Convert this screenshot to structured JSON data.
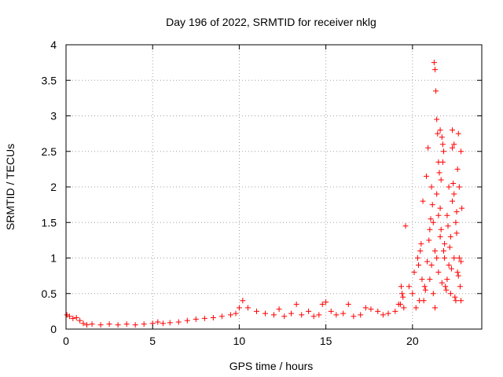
{
  "chart_data": {
    "type": "scatter",
    "title": "Day 196 of 2022, SRMTID for receiver nklg",
    "xlabel": "GPS time / hours",
    "ylabel": "SRMTID / TECUs",
    "xlim": [
      0,
      24
    ],
    "ylim": [
      0,
      4
    ],
    "x_ticks": [
      "0",
      "5",
      "10",
      "15",
      "20"
    ],
    "y_ticks": [
      "0",
      "0.5",
      "1",
      "1.5",
      "2",
      "2.5",
      "3",
      "3.5",
      "4"
    ],
    "grid": true,
    "marker": "plus",
    "color": "#ff0000",
    "series": [
      {
        "name": "SRMTID",
        "x": [
          0.05,
          0.2,
          0.4,
          0.6,
          0.8,
          1.0,
          1.2,
          1.5,
          2.0,
          2.5,
          3.0,
          3.5,
          4.0,
          4.5,
          5.0,
          5.3,
          5.6,
          6.0,
          6.5,
          7.0,
          7.5,
          8.0,
          8.5,
          9.0,
          9.5,
          9.8,
          10.0,
          10.2,
          10.5,
          11.0,
          11.5,
          12.0,
          12.3,
          12.6,
          13.0,
          13.3,
          13.6,
          14.0,
          14.3,
          14.6,
          14.8,
          15.0,
          15.3,
          15.6,
          16.0,
          16.3,
          16.6,
          17.0,
          17.3,
          17.6,
          18.0,
          18.3,
          18.6,
          19.0,
          19.2,
          19.4,
          19.5,
          19.6,
          19.8,
          20.0,
          20.1,
          20.2,
          20.3,
          20.4,
          20.5,
          20.6,
          20.7,
          20.8,
          20.9,
          21.0,
          21.0,
          21.1,
          21.1,
          21.2,
          21.2,
          21.3,
          21.3,
          21.4,
          21.4,
          21.5,
          21.5,
          21.6,
          21.6,
          21.65,
          21.7,
          21.75,
          21.8,
          21.85,
          21.9,
          22.0,
          22.0,
          22.1,
          22.1,
          22.2,
          22.2,
          22.3,
          22.3,
          22.4,
          22.4,
          22.5,
          22.5,
          22.6,
          22.6,
          22.7,
          22.7,
          22.8,
          22.8,
          21.25,
          21.3,
          21.35,
          21.4,
          21.45,
          21.5,
          21.55,
          21.6,
          21.65,
          21.75,
          21.8,
          22.3,
          22.4,
          22.55,
          22.65,
          22.8,
          22.85,
          19.3,
          19.35,
          19.45,
          20.35,
          20.45,
          20.55,
          20.65,
          20.75,
          20.85,
          20.95,
          21.05,
          21.15,
          21.7,
          21.85,
          21.95,
          22.05,
          22.15,
          22.25,
          22.35,
          22.45,
          22.55,
          22.65,
          22.75
        ],
        "y": [
          0.2,
          0.18,
          0.15,
          0.16,
          0.12,
          0.08,
          0.06,
          0.07,
          0.06,
          0.07,
          0.06,
          0.07,
          0.06,
          0.07,
          0.08,
          0.1,
          0.08,
          0.09,
          0.1,
          0.12,
          0.14,
          0.15,
          0.16,
          0.18,
          0.2,
          0.22,
          0.3,
          0.4,
          0.3,
          0.25,
          0.22,
          0.2,
          0.28,
          0.18,
          0.22,
          0.35,
          0.2,
          0.25,
          0.18,
          0.2,
          0.35,
          0.38,
          0.25,
          0.2,
          0.22,
          0.35,
          0.18,
          0.2,
          0.3,
          0.28,
          0.25,
          0.2,
          0.22,
          0.25,
          0.35,
          0.5,
          0.3,
          1.45,
          0.6,
          0.5,
          0.8,
          0.3,
          1.0,
          0.4,
          1.2,
          1.8,
          0.6,
          2.15,
          2.55,
          1.4,
          0.7,
          0.9,
          2.0,
          1.5,
          0.5,
          0.3,
          1.1,
          1.0,
          1.9,
          1.6,
          0.8,
          2.8,
          1.3,
          2.1,
          2.7,
          2.35,
          2.5,
          1.2,
          0.6,
          0.7,
          1.6,
          0.9,
          2.0,
          1.3,
          0.5,
          1.8,
          2.8,
          1.0,
          2.6,
          0.4,
          1.5,
          2.25,
          0.8,
          2.0,
          1.0,
          0.4,
          2.5,
          3.75,
          3.65,
          3.35,
          2.95,
          2.75,
          2.35,
          2.2,
          1.7,
          1.4,
          2.6,
          1.1,
          2.55,
          1.9,
          1.65,
          2.75,
          0.95,
          1.7,
          0.35,
          0.6,
          0.45,
          0.9,
          1.1,
          0.7,
          0.4,
          0.55,
          0.95,
          1.25,
          1.55,
          1.75,
          0.65,
          1.0,
          0.55,
          1.45,
          1.15,
          0.85,
          2.05,
          0.45,
          1.35,
          0.75,
          0.6
        ]
      }
    ]
  }
}
